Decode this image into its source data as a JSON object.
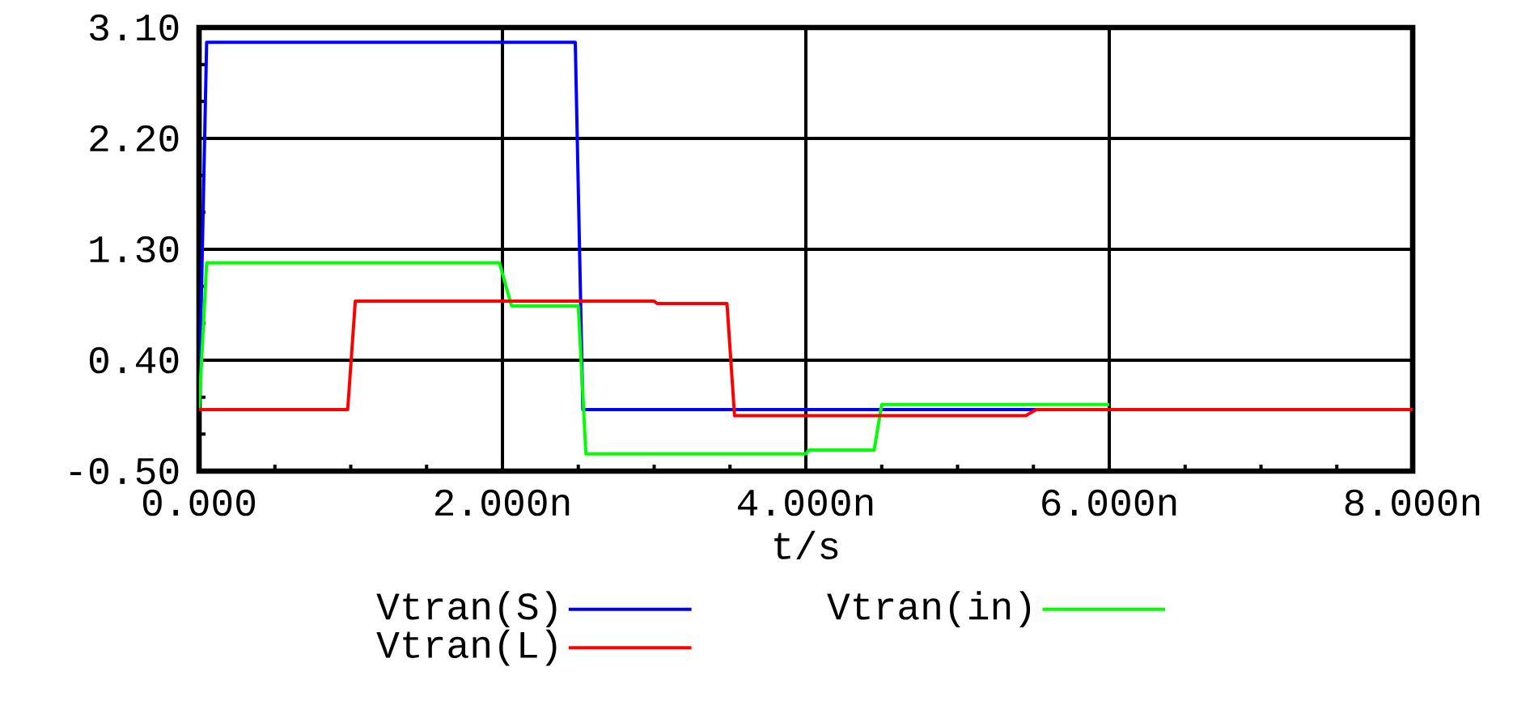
{
  "chart_data": {
    "type": "line",
    "xlabel": "t/s",
    "xlim": [
      0,
      8
    ],
    "ylim": [
      -0.5,
      3.1
    ],
    "xticks": [
      {
        "value": 0,
        "label": "0.000"
      },
      {
        "value": 2,
        "label": "2.000n"
      },
      {
        "value": 4,
        "label": "4.000n"
      },
      {
        "value": 6,
        "label": "6.000n"
      },
      {
        "value": 8,
        "label": "8.000n"
      }
    ],
    "yticks": [
      {
        "value": -0.5,
        "label": "-0.50"
      },
      {
        "value": 0.4,
        "label": "0.40"
      },
      {
        "value": 1.3,
        "label": "1.30"
      },
      {
        "value": 2.2,
        "label": "2.20"
      },
      {
        "value": 3.1,
        "label": "3.10"
      }
    ],
    "grid": true,
    "legend": "bottom",
    "marker": "none",
    "line_style": "solid",
    "series": [
      {
        "name": "Vtran(S)",
        "color": "#0000ff",
        "x": [
          0,
          0.05,
          2.48,
          2.53,
          6.0
        ],
        "values": [
          0,
          2.98,
          2.98,
          0,
          0
        ]
      },
      {
        "name": "Vtran(in)",
        "color": "#00ff00",
        "x": [
          0,
          0.05,
          1.98,
          2.06,
          2.5,
          2.55,
          4.0,
          4.02,
          4.45,
          4.5,
          6.0
        ],
        "values": [
          0,
          1.19,
          1.19,
          0.84,
          0.84,
          -0.36,
          -0.36,
          -0.33,
          -0.33,
          0.04,
          0.04
        ]
      },
      {
        "name": "Vtran(L)",
        "color": "#ff0000",
        "x": [
          0,
          0.98,
          1.03,
          3.0,
          3.02,
          3.48,
          3.53,
          5.45,
          5.52,
          8.0
        ],
        "values": [
          0,
          0,
          0.88,
          0.88,
          0.86,
          0.86,
          -0.05,
          -0.05,
          0,
          0
        ]
      }
    ]
  }
}
